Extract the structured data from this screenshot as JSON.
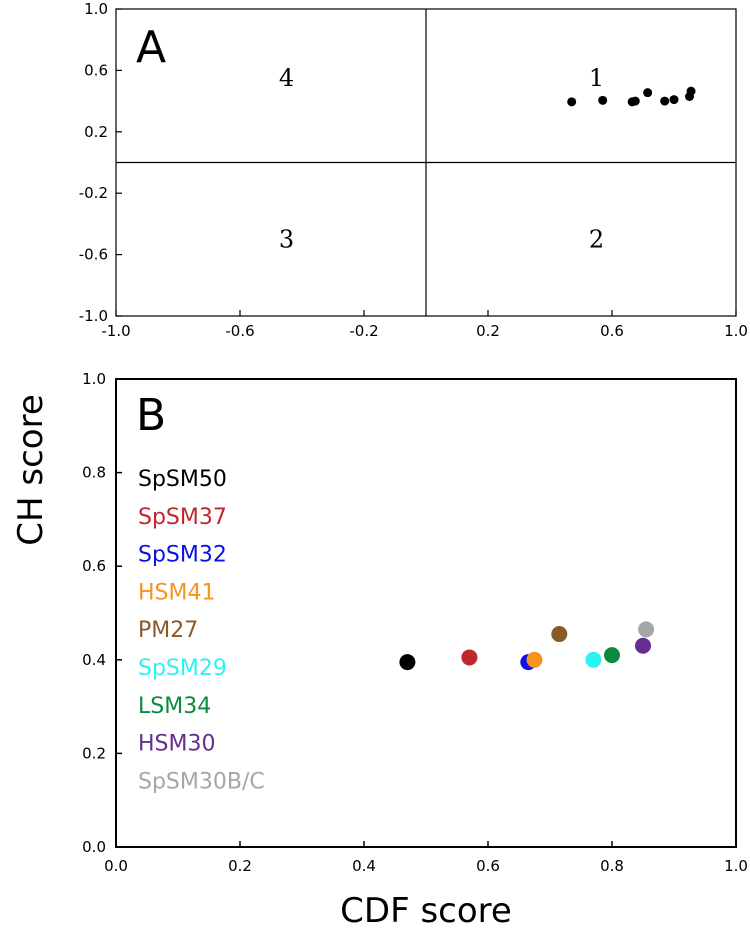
{
  "shared_axes": {
    "ylabel": "CH score",
    "xlabel": "CDF score"
  },
  "chart_data": [
    {
      "panel": "A",
      "type": "scatter",
      "xlim": [
        -1.0,
        1.0
      ],
      "ylim": [
        -1.0,
        1.0
      ],
      "x_ticks": [
        "-1.0",
        "-0.6",
        "-0.2",
        "0.2",
        "0.6",
        "1.0"
      ],
      "x_tick_values": [
        -1.0,
        -0.6,
        -0.2,
        0.2,
        0.6,
        1.0
      ],
      "y_ticks": [
        "1.0",
        "0.6",
        "0.2",
        "-0.2",
        "-0.6",
        "-1.0"
      ],
      "y_tick_values": [
        1.0,
        0.6,
        0.2,
        -0.2,
        -0.6,
        -1.0
      ],
      "quadrant_lines": {
        "x": 0,
        "y": 0
      },
      "quadrant_labels": [
        {
          "text": "1",
          "x": 0.55,
          "y": 0.55
        },
        {
          "text": "2",
          "x": 0.55,
          "y": -0.5
        },
        {
          "text": "3",
          "x": -0.45,
          "y": -0.5
        },
        {
          "text": "4",
          "x": -0.45,
          "y": 0.55
        }
      ],
      "color": "#000000",
      "points": [
        {
          "x": 0.47,
          "y": 0.395
        },
        {
          "x": 0.57,
          "y": 0.405
        },
        {
          "x": 0.665,
          "y": 0.395
        },
        {
          "x": 0.675,
          "y": 0.4
        },
        {
          "x": 0.715,
          "y": 0.455
        },
        {
          "x": 0.77,
          "y": 0.4
        },
        {
          "x": 0.8,
          "y": 0.41
        },
        {
          "x": 0.85,
          "y": 0.43
        },
        {
          "x": 0.855,
          "y": 0.465
        }
      ]
    },
    {
      "panel": "B",
      "type": "scatter",
      "xlim": [
        0.0,
        1.0
      ],
      "ylim": [
        0.0,
        1.0
      ],
      "x_ticks": [
        "0.0",
        "0.2",
        "0.4",
        "0.6",
        "0.8",
        "1.0"
      ],
      "x_tick_values": [
        0.0,
        0.2,
        0.4,
        0.6,
        0.8,
        1.0
      ],
      "y_ticks": [
        "1.0",
        "0.8",
        "0.6",
        "0.4",
        "0.2",
        "0.0"
      ],
      "y_tick_values": [
        1.0,
        0.8,
        0.6,
        0.4,
        0.2,
        0.0
      ],
      "legend_position": "left",
      "series": [
        {
          "name": "SpSM50",
          "color": "#000000",
          "x": 0.47,
          "y": 0.395
        },
        {
          "name": "SpSM37",
          "color": "#c0272d",
          "x": 0.57,
          "y": 0.405
        },
        {
          "name": "SpSM32",
          "color": "#0a12e6",
          "x": 0.665,
          "y": 0.395
        },
        {
          "name": "HSM41",
          "color": "#f7941d",
          "x": 0.675,
          "y": 0.4
        },
        {
          "name": "PM27",
          "color": "#8b5a2b",
          "x": 0.715,
          "y": 0.455
        },
        {
          "name": "SpSM29",
          "color": "#2ef2f2",
          "x": 0.77,
          "y": 0.4
        },
        {
          "name": "LSM34",
          "color": "#0c8a3c",
          "x": 0.8,
          "y": 0.41
        },
        {
          "name": "HSM30",
          "color": "#662d91",
          "x": 0.85,
          "y": 0.43
        },
        {
          "name": "SpSM30B/C",
          "color": "#a6a6a6",
          "x": 0.855,
          "y": 0.465
        }
      ]
    }
  ]
}
